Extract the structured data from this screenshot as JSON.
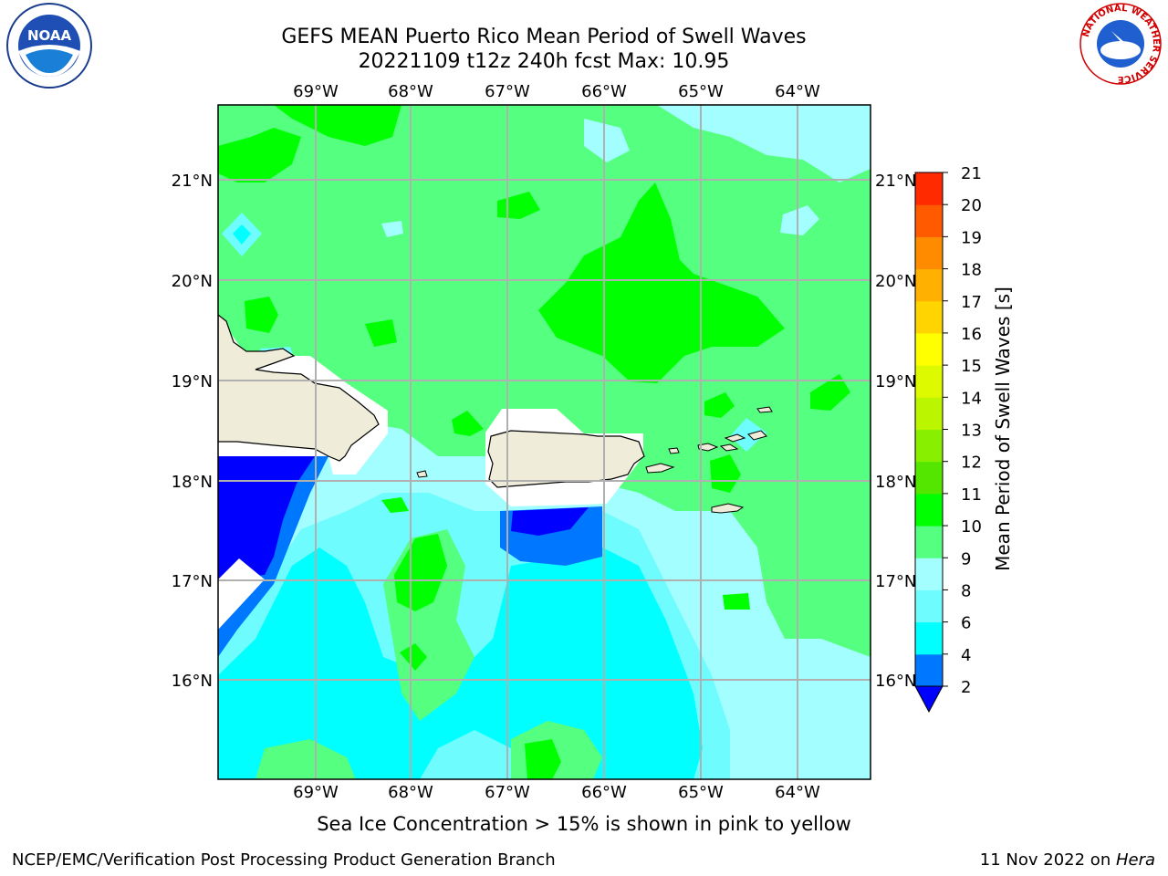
{
  "header": {
    "title_line1": "GEFS MEAN Puerto Rico Mean Period of Swell Waves",
    "title_line2": "20221109 t12z 240h fcst   Max: 10.95"
  },
  "logos": {
    "left": {
      "name": "noaa-logo",
      "text": "NOAA"
    },
    "right": {
      "name": "nws-logo",
      "text": "NATIONAL WEATHER SERVICE"
    }
  },
  "map": {
    "lon_labels": [
      "69°W",
      "68°W",
      "67°W",
      "66°W",
      "65°W",
      "64°W"
    ],
    "lat_labels": [
      "21°N",
      "20°N",
      "19°N",
      "18°N",
      "17°N",
      "16°N"
    ],
    "land_color": "#efecd9",
    "ocean_palette": {
      "blue": "#0000ff",
      "mid_blue": "#0077ff",
      "cyan": "#00ffff",
      "light_cyan": "#6ffcff",
      "pale_cyan": "#a3ffff",
      "green": "#55ff7f",
      "bright_green": "#00ff00"
    }
  },
  "colorbar": {
    "label": "Mean Period of Swell Waves [s]",
    "ticks": [
      "2",
      "4",
      "6",
      "8",
      "9",
      "10",
      "11",
      "12",
      "13",
      "14",
      "15",
      "16",
      "17",
      "18",
      "19",
      "20",
      "21"
    ],
    "colors": [
      "#0077ff",
      "#00ffff",
      "#6ffcff",
      "#a3ffff",
      "#55ff7f",
      "#00ff00",
      "#55e600",
      "#88ef00",
      "#bbf500",
      "#ddfa00",
      "#ffff00",
      "#ffd400",
      "#ffb000",
      "#ff8c00",
      "#ff5a00",
      "#ff2a00"
    ],
    "under_color": "#0000ff"
  },
  "note": "Sea Ice Concentration > 15% is shown in pink to yellow",
  "footer": {
    "left": "NCEP/EMC/Verification Post Processing Product Generation Branch",
    "right_prefix": "11 Nov 2022 on ",
    "right_host": "Hera"
  }
}
